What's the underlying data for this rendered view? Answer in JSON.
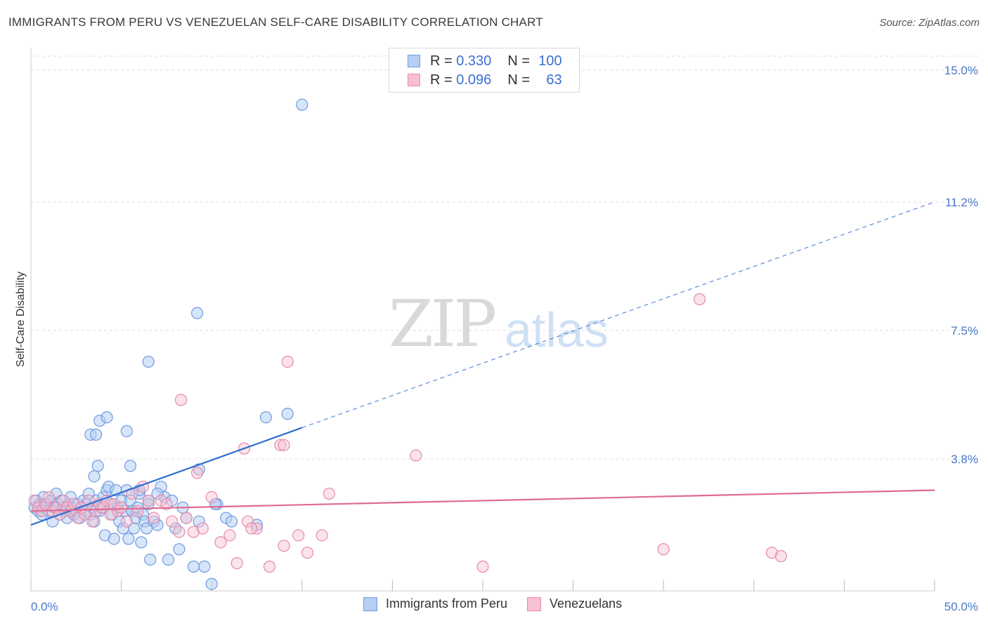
{
  "title": "IMMIGRANTS FROM PERU VS VENEZUELAN SELF-CARE DISABILITY CORRELATION CHART",
  "source": "Source: ZipAtlas.com",
  "watermark": {
    "zip": "ZIP",
    "atlas": "atlas"
  },
  "legend": {
    "rows": [
      {
        "r_label": "R =",
        "r_value": "0.330",
        "n_label": "N =",
        "n_value": "100"
      },
      {
        "r_label": "R =",
        "r_value": "0.096",
        "n_label": "N =",
        "n_value": "63"
      }
    ]
  },
  "bottom_legend": [
    "Immigrants from Peru",
    "Venezuelans"
  ],
  "colors": {
    "blue_fill": "#b5cff2",
    "blue_stroke": "#6f9be0",
    "blue_line": "#2f6fd0",
    "pink_fill": "#f7c0d3",
    "pink_stroke": "#e58aaa",
    "pink_line": "#e06a92",
    "grid": "#dcdcdc",
    "tick_label": "#4a78c9"
  },
  "chart_data": {
    "type": "scatter",
    "title": "IMMIGRANTS FROM PERU VS VENEZUELAN SELF-CARE DISABILITY CORRELATION CHART",
    "xlabel": "",
    "ylabel": "Self-Care Disability",
    "xlim": [
      0,
      50
    ],
    "ylim": [
      0,
      15.4
    ],
    "x_tick_labels": [
      "0.0%",
      "50.0%"
    ],
    "y_ticks": [
      3.8,
      7.5,
      11.2,
      15.0
    ],
    "y_tick_labels": [
      "3.8%",
      "7.5%",
      "11.2%",
      "15.0%"
    ],
    "series": [
      {
        "name": "Immigrants from Peru",
        "color": "#6f9be0",
        "trend": {
          "x": [
            0,
            15
          ],
          "y": [
            1.9,
            4.7
          ],
          "extend_dashed_to": [
            50,
            11.2
          ]
        },
        "points": [
          [
            0.2,
            2.4
          ],
          [
            0.3,
            2.6
          ],
          [
            0.4,
            2.3
          ],
          [
            0.5,
            2.5
          ],
          [
            0.6,
            2.2
          ],
          [
            0.7,
            2.7
          ],
          [
            0.8,
            2.4
          ],
          [
            0.9,
            2.5
          ],
          [
            1.0,
            2.3
          ],
          [
            1.1,
            2.6
          ],
          [
            1.2,
            2.0
          ],
          [
            1.3,
            2.4
          ],
          [
            1.4,
            2.8
          ],
          [
            1.5,
            2.5
          ],
          [
            1.6,
            2.2
          ],
          [
            1.7,
            2.6
          ],
          [
            1.8,
            2.4
          ],
          [
            1.9,
            2.3
          ],
          [
            2.0,
            2.1
          ],
          [
            2.1,
            2.5
          ],
          [
            2.2,
            2.7
          ],
          [
            2.3,
            2.4
          ],
          [
            2.4,
            2.2
          ],
          [
            2.5,
            2.3
          ],
          [
            2.6,
            2.5
          ],
          [
            2.7,
            2.1
          ],
          [
            2.8,
            2.4
          ],
          [
            2.9,
            2.6
          ],
          [
            3.0,
            2.3
          ],
          [
            3.1,
            2.5
          ],
          [
            3.2,
            2.8
          ],
          [
            3.3,
            2.2
          ],
          [
            3.4,
            2.4
          ],
          [
            3.5,
            2.0
          ],
          [
            3.6,
            2.6
          ],
          [
            3.7,
            3.6
          ],
          [
            3.8,
            2.3
          ],
          [
            3.9,
            2.4
          ],
          [
            4.0,
            2.7
          ],
          [
            4.1,
            1.6
          ],
          [
            4.2,
            2.9
          ],
          [
            4.3,
            3.0
          ],
          [
            4.4,
            2.5
          ],
          [
            4.5,
            2.2
          ],
          [
            4.6,
            1.5
          ],
          [
            4.7,
            2.9
          ],
          [
            4.8,
            2.4
          ],
          [
            4.9,
            2.0
          ],
          [
            5.0,
            2.6
          ],
          [
            5.1,
            1.8
          ],
          [
            5.2,
            2.3
          ],
          [
            5.3,
            2.9
          ],
          [
            5.4,
            1.5
          ],
          [
            5.5,
            2.6
          ],
          [
            5.6,
            2.3
          ],
          [
            5.7,
            1.8
          ],
          [
            5.8,
            2.1
          ],
          [
            5.9,
            2.4
          ],
          [
            6.0,
            2.8
          ],
          [
            6.1,
            1.4
          ],
          [
            6.2,
            2.2
          ],
          [
            6.3,
            2.0
          ],
          [
            6.4,
            1.8
          ],
          [
            6.5,
            2.6
          ],
          [
            6.6,
            0.9
          ],
          [
            6.8,
            2.0
          ],
          [
            7.0,
            1.9
          ],
          [
            7.2,
            3.0
          ],
          [
            7.4,
            2.7
          ],
          [
            7.6,
            0.9
          ],
          [
            7.8,
            2.6
          ],
          [
            8.0,
            1.8
          ],
          [
            8.2,
            1.2
          ],
          [
            8.4,
            2.4
          ],
          [
            8.6,
            2.1
          ],
          [
            9.0,
            0.7
          ],
          [
            9.3,
            2.0
          ],
          [
            9.6,
            0.7
          ],
          [
            10.0,
            0.2
          ],
          [
            10.3,
            2.5
          ],
          [
            3.3,
            4.5
          ],
          [
            3.5,
            3.3
          ],
          [
            3.6,
            4.5
          ],
          [
            3.8,
            4.9
          ],
          [
            4.2,
            5.0
          ],
          [
            5.3,
            4.6
          ],
          [
            5.5,
            3.6
          ],
          [
            6.0,
            2.9
          ],
          [
            6.5,
            2.5
          ],
          [
            7.0,
            2.8
          ],
          [
            9.3,
            3.5
          ],
          [
            10.2,
            2.5
          ],
          [
            10.8,
            2.1
          ],
          [
            11.1,
            2.0
          ],
          [
            12.5,
            1.9
          ],
          [
            14.2,
            5.1
          ],
          [
            9.2,
            8.0
          ],
          [
            6.5,
            6.6
          ],
          [
            15.0,
            14.0
          ],
          [
            13.0,
            5.0
          ]
        ]
      },
      {
        "name": "Venezuelans",
        "color": "#e58aaa",
        "trend": {
          "x": [
            0,
            50
          ],
          "y": [
            2.3,
            2.9
          ]
        },
        "points": [
          [
            0.2,
            2.6
          ],
          [
            0.4,
            2.4
          ],
          [
            0.6,
            2.3
          ],
          [
            0.8,
            2.5
          ],
          [
            1.0,
            2.7
          ],
          [
            1.2,
            2.3
          ],
          [
            1.4,
            2.4
          ],
          [
            1.6,
            2.2
          ],
          [
            1.8,
            2.6
          ],
          [
            2.0,
            2.4
          ],
          [
            2.2,
            2.3
          ],
          [
            2.4,
            2.5
          ],
          [
            2.6,
            2.1
          ],
          [
            2.8,
            2.4
          ],
          [
            3.0,
            2.2
          ],
          [
            3.2,
            2.6
          ],
          [
            3.4,
            2.0
          ],
          [
            3.6,
            2.3
          ],
          [
            3.8,
            2.5
          ],
          [
            4.0,
            2.4
          ],
          [
            4.2,
            2.6
          ],
          [
            4.4,
            2.2
          ],
          [
            4.6,
            2.5
          ],
          [
            4.8,
            2.3
          ],
          [
            5.0,
            2.4
          ],
          [
            5.3,
            2.0
          ],
          [
            5.6,
            2.8
          ],
          [
            5.9,
            2.3
          ],
          [
            6.2,
            3.0
          ],
          [
            6.5,
            2.6
          ],
          [
            6.8,
            2.1
          ],
          [
            7.2,
            2.6
          ],
          [
            7.5,
            2.5
          ],
          [
            7.8,
            2.0
          ],
          [
            8.2,
            1.7
          ],
          [
            8.6,
            2.1
          ],
          [
            9.0,
            1.7
          ],
          [
            9.5,
            1.8
          ],
          [
            10.0,
            2.7
          ],
          [
            10.5,
            1.4
          ],
          [
            11.0,
            1.6
          ],
          [
            11.4,
            0.8
          ],
          [
            12.0,
            2.0
          ],
          [
            12.5,
            1.8
          ],
          [
            13.2,
            0.7
          ],
          [
            14.0,
            1.3
          ],
          [
            14.8,
            1.6
          ],
          [
            15.3,
            1.1
          ],
          [
            16.1,
            1.6
          ],
          [
            16.5,
            2.8
          ],
          [
            8.3,
            5.5
          ],
          [
            9.2,
            3.4
          ],
          [
            11.8,
            4.1
          ],
          [
            13.8,
            4.2
          ],
          [
            14.0,
            4.2
          ],
          [
            14.2,
            6.6
          ],
          [
            21.3,
            3.9
          ],
          [
            25.0,
            0.7
          ],
          [
            37.0,
            8.4
          ],
          [
            35.0,
            1.2
          ],
          [
            41.0,
            1.1
          ],
          [
            41.5,
            1.0
          ],
          [
            12.2,
            1.8
          ]
        ]
      }
    ]
  }
}
